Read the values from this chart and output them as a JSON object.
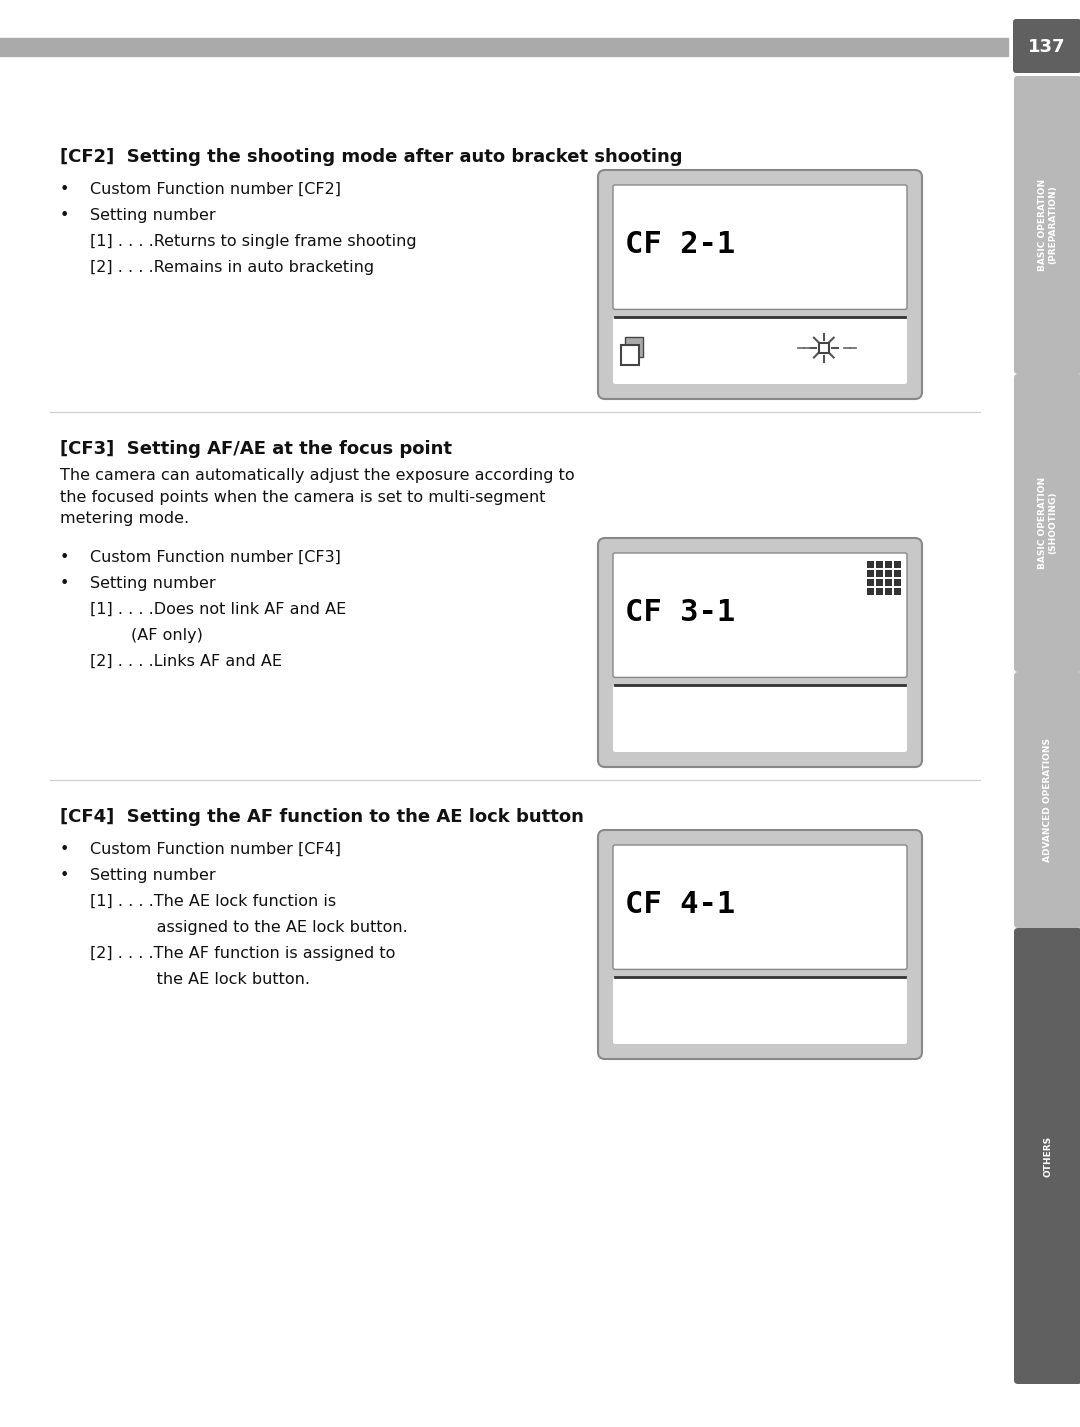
{
  "page_number": "137",
  "bg": "#ffffff",
  "header_bar_color": "#aaaaaa",
  "tab_gray": "#b8b8b8",
  "tab_dark": "#606060",
  "tab_labels": [
    "BASIC OPERATION\n(PREPARATION)",
    "BASIC OPERATION\n(SHOOTING)",
    "ADVANCED OPERATIONS",
    "OTHERS"
  ],
  "sections": [
    {
      "id": "CF2",
      "title": "[CF2]  Setting the shooting mode after auto bracket shooting",
      "bullets": [
        "Custom Function number [CF2]",
        "Setting number"
      ],
      "items": [
        "[1] . . . .Returns to single frame shooting",
        "[2] . . . .Remains in auto bracketing"
      ],
      "lcd": "CF 2-1",
      "has_sun_icon": true,
      "has_drive_icon": true,
      "has_grid_icon": false,
      "intro": null
    },
    {
      "id": "CF3",
      "title": "[CF3]  Setting AF/AE at the focus point",
      "bullets": [
        "Custom Function number [CF3]",
        "Setting number"
      ],
      "items": [
        "[1] . . . .Does not link AF and AE",
        "        (AF only)",
        "[2] . . . .Links AF and AE"
      ],
      "lcd": "CF 3-1",
      "has_sun_icon": false,
      "has_drive_icon": false,
      "has_grid_icon": true,
      "intro": "The camera can automatically adjust the exposure according to\nthe focused points when the camera is set to multi-segment\nmetering mode."
    },
    {
      "id": "CF4",
      "title": "[CF4]  Setting the AF function to the AE lock button",
      "bullets": [
        "Custom Function number [CF4]",
        "Setting number"
      ],
      "items": [
        "[1] . . . .The AE lock function is",
        "             assigned to the AE lock button.",
        "[2] . . . .The AF function is assigned to",
        "             the AE lock button."
      ],
      "lcd": "CF 4-1",
      "has_sun_icon": false,
      "has_drive_icon": false,
      "has_grid_icon": false,
      "intro": null
    }
  ]
}
